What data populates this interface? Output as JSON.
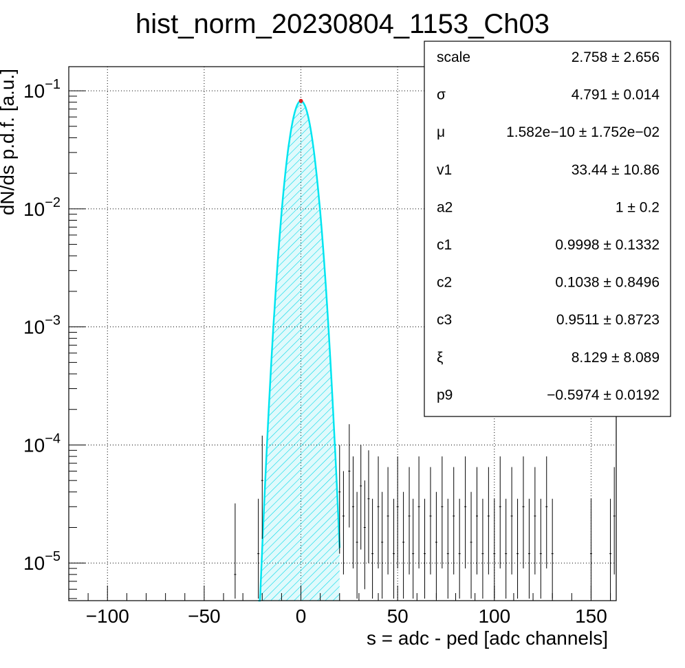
{
  "chart_data": {
    "type": "histogram",
    "title": "hist_norm_20230804_1153_Ch03",
    "xlabel": "s = adc - ped [adc channels]",
    "ylabel": "dN/ds p.d.f. [a.u.]",
    "xlim": [
      -120,
      163
    ],
    "ylim": [
      4.8e-06,
      0.16
    ],
    "yscale": "log",
    "grid": true,
    "x_ticks": [
      -100,
      -50,
      0,
      50,
      100,
      150
    ],
    "x_tick_labels": [
      "−100",
      "−50",
      "0",
      "50",
      "100",
      "150"
    ],
    "y_ticks": [
      {
        "base": "10",
        "exp": "−5",
        "value": 1e-05
      },
      {
        "base": "10",
        "exp": "−4",
        "value": 0.0001
      },
      {
        "base": "10",
        "exp": "−3",
        "value": 0.001
      },
      {
        "base": "10",
        "exp": "−2",
        "value": 0.01
      },
      {
        "base": "10",
        "exp": "−1",
        "value": 0.1
      }
    ],
    "fit": {
      "function": "gaussian",
      "amplitude": 0.082,
      "mean": 0.0,
      "sigma": 4.791,
      "fill_color": "#00d8e8",
      "line_color": "#00e5f0",
      "range": [
        -22,
        20
      ]
    },
    "histogram_errors": [
      {
        "x": -34,
        "y": 8e-06,
        "lo": 5e-06,
        "hi": 3.2e-05
      },
      {
        "x": -22,
        "y": 1.2e-05,
        "lo": 5e-06,
        "hi": 3.5e-05
      },
      {
        "x": -20,
        "y": 5e-05,
        "lo": 1.6e-05,
        "hi": 0.00012
      },
      {
        "x": 20,
        "y": 4e-05,
        "lo": 1.2e-05,
        "hi": 0.0001
      },
      {
        "x": 22,
        "y": 2.5e-05,
        "lo": 8e-06,
        "hi": 6e-05
      },
      {
        "x": 25,
        "y": 6e-05,
        "lo": 2e-05,
        "hi": 0.00015
      },
      {
        "x": 27,
        "y": 3e-05,
        "lo": 9e-06,
        "hi": 8e-05
      },
      {
        "x": 29,
        "y": 1.5e-05,
        "lo": 5e-06,
        "hi": 4e-05
      },
      {
        "x": 31,
        "y": 4.5e-05,
        "lo": 1.3e-05,
        "hi": 0.0001
      },
      {
        "x": 33,
        "y": 2e-05,
        "lo": 6e-06,
        "hi": 5e-05
      },
      {
        "x": 35,
        "y": 3.5e-05,
        "lo": 1e-05,
        "hi": 9e-05
      },
      {
        "x": 37,
        "y": 1.2e-05,
        "lo": 5e-06,
        "hi": 3.5e-05
      },
      {
        "x": 40,
        "y": 3e-05,
        "lo": 9e-06,
        "hi": 8e-05
      },
      {
        "x": 42,
        "y": 1.5e-05,
        "lo": 5e-06,
        "hi": 4e-05
      },
      {
        "x": 45,
        "y": 2.5e-05,
        "lo": 8e-06,
        "hi": 6.5e-05
      },
      {
        "x": 48,
        "y": 1.2e-05,
        "lo": 5e-06,
        "hi": 3.5e-05
      },
      {
        "x": 50,
        "y": 3e-05,
        "lo": 9e-06,
        "hi": 8e-05
      },
      {
        "x": 53,
        "y": 1.5e-05,
        "lo": 5e-06,
        "hi": 4e-05
      },
      {
        "x": 56,
        "y": 2.5e-05,
        "lo": 8e-06,
        "hi": 6.5e-05
      },
      {
        "x": 58,
        "y": 1.2e-05,
        "lo": 5e-06,
        "hi": 3.5e-05
      },
      {
        "x": 61,
        "y": 3e-05,
        "lo": 9e-06,
        "hi": 8e-05
      },
      {
        "x": 64,
        "y": 1.2e-05,
        "lo": 5e-06,
        "hi": 3.5e-05
      },
      {
        "x": 67,
        "y": 2.5e-05,
        "lo": 8e-06,
        "hi": 6.5e-05
      },
      {
        "x": 70,
        "y": 1.5e-05,
        "lo": 5e-06,
        "hi": 4e-05
      },
      {
        "x": 73,
        "y": 3e-05,
        "lo": 9e-06,
        "hi": 8e-05
      },
      {
        "x": 76,
        "y": 1.2e-05,
        "lo": 5e-06,
        "hi": 3.5e-05
      },
      {
        "x": 79,
        "y": 2.5e-05,
        "lo": 8e-06,
        "hi": 6.5e-05
      },
      {
        "x": 82,
        "y": 1.2e-05,
        "lo": 5e-06,
        "hi": 3.5e-05
      },
      {
        "x": 85,
        "y": 3e-05,
        "lo": 9e-06,
        "hi": 8e-05
      },
      {
        "x": 88,
        "y": 1.5e-05,
        "lo": 5e-06,
        "hi": 4e-05
      },
      {
        "x": 91,
        "y": 2.5e-05,
        "lo": 8e-06,
        "hi": 6.5e-05
      },
      {
        "x": 94,
        "y": 1.2e-05,
        "lo": 5e-06,
        "hi": 3.5e-05
      },
      {
        "x": 97,
        "y": 2.5e-05,
        "lo": 8e-06,
        "hi": 6.5e-05
      },
      {
        "x": 100,
        "y": 1.2e-05,
        "lo": 5e-06,
        "hi": 3.5e-05
      },
      {
        "x": 103,
        "y": 3e-05,
        "lo": 9e-06,
        "hi": 8e-05
      },
      {
        "x": 106,
        "y": 1.2e-05,
        "lo": 5e-06,
        "hi": 3.5e-05
      },
      {
        "x": 109,
        "y": 2.5e-05,
        "lo": 8e-06,
        "hi": 6.5e-05
      },
      {
        "x": 112,
        "y": 1.2e-05,
        "lo": 5e-06,
        "hi": 3.5e-05
      },
      {
        "x": 115,
        "y": 3e-05,
        "lo": 9e-06,
        "hi": 8e-05
      },
      {
        "x": 118,
        "y": 1.2e-05,
        "lo": 5e-06,
        "hi": 3.5e-05
      },
      {
        "x": 121,
        "y": 2.5e-05,
        "lo": 8e-06,
        "hi": 6.5e-05
      },
      {
        "x": 124,
        "y": 1.2e-05,
        "lo": 5e-06,
        "hi": 3.5e-05
      },
      {
        "x": 127,
        "y": 3e-05,
        "lo": 9e-06,
        "hi": 8e-05
      },
      {
        "x": 130,
        "y": 1.2e-05,
        "lo": 5e-06,
        "hi": 3.5e-05
      },
      {
        "x": 150,
        "y": 1.2e-05,
        "lo": 5e-06,
        "hi": 3.5e-05
      },
      {
        "x": 160,
        "y": 1.2e-05,
        "lo": 5e-06,
        "hi": 3.5e-05
      },
      {
        "x": 162,
        "y": 2.5e-05,
        "lo": 8e-06,
        "hi": 6.5e-05
      }
    ]
  },
  "stats": [
    {
      "key": "scale",
      "value": "2.758 ± 2.656"
    },
    {
      "key": "σ",
      "value": "4.791 ± 0.014"
    },
    {
      "key": "μ",
      "value": "1.582e−10 ± 1.752e−02"
    },
    {
      "key": "v1",
      "value": "33.44 ± 10.86"
    },
    {
      "key": "a2",
      "value": "1 ± 0.2"
    },
    {
      "key": "c1",
      "value": "0.9998 ± 0.1332"
    },
    {
      "key": "c2",
      "value": "0.1038 ± 0.8496"
    },
    {
      "key": "c3",
      "value": "0.9511 ± 0.8723"
    },
    {
      "key": "ξ",
      "value": "8.129 ± 8.089"
    },
    {
      "key": "p9",
      "value": "−0.5974 ± 0.0192"
    }
  ]
}
